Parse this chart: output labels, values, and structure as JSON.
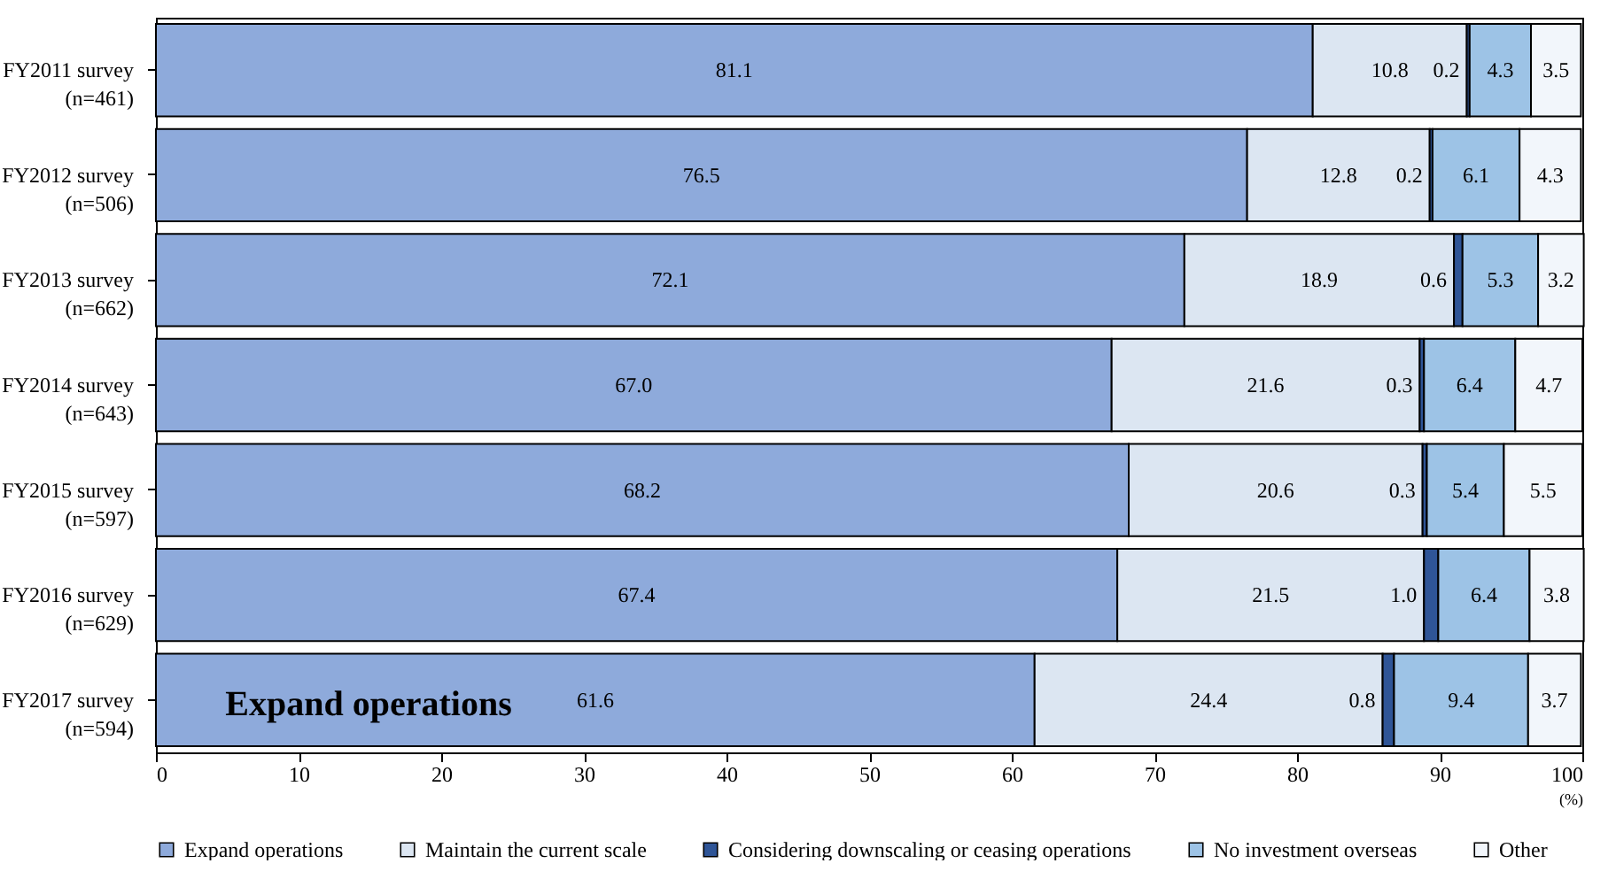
{
  "chart_data": {
    "type": "bar",
    "orientation": "horizontal",
    "stacked": true,
    "data_labels": true,
    "legend": "bottom",
    "grid": false,
    "xlabel": "(%)",
    "categories": [
      "FY2011 survey\n(n=461)",
      "FY2012 survey\n(n=506)",
      "FY2013 survey\n(n=662)",
      "FY2014 survey\n(n=643)",
      "FY2015 survey\n(n=597)",
      "FY2016 survey\n(n=629)",
      "FY2017 survey\n(n=594)"
    ],
    "series": [
      {
        "name": "Expand operations",
        "color": "#8eaadb",
        "values": [
          81.1,
          76.5,
          72.1,
          67.0,
          68.2,
          67.4,
          61.6
        ],
        "value_labels": [
          "81.1",
          "76.5",
          "72.1",
          "67.0",
          "68.2",
          "67.4",
          "61.6"
        ]
      },
      {
        "name": "Maintain the current scale",
        "color": "#dce6f2",
        "values": [
          10.8,
          12.8,
          18.9,
          21.6,
          20.6,
          21.5,
          24.4
        ]
      },
      {
        "name": "Considering downscaling or ceasing operations",
        "color": "#2f5597",
        "values": [
          0.2,
          0.2,
          0.6,
          0.3,
          0.3,
          1.0,
          0.8
        ],
        "value_labels": [
          "0.2",
          "0.2",
          "0.6",
          "0.3",
          "0.3",
          "1.0",
          "0.8"
        ]
      },
      {
        "name": "No investment overseas",
        "color": "#9dc3e6",
        "values": [
          4.3,
          6.1,
          5.3,
          6.4,
          5.4,
          6.4,
          9.4
        ]
      },
      {
        "name": "Other",
        "color": "#f2f6fb",
        "values": [
          3.5,
          4.3,
          3.2,
          4.7,
          5.5,
          3.8,
          3.7
        ]
      }
    ],
    "xlim": [
      0,
      100
    ],
    "xticks": [
      0,
      10,
      20,
      30,
      40,
      50,
      60,
      70,
      80,
      90,
      100
    ],
    "annotations": [
      "Expand operations"
    ]
  }
}
